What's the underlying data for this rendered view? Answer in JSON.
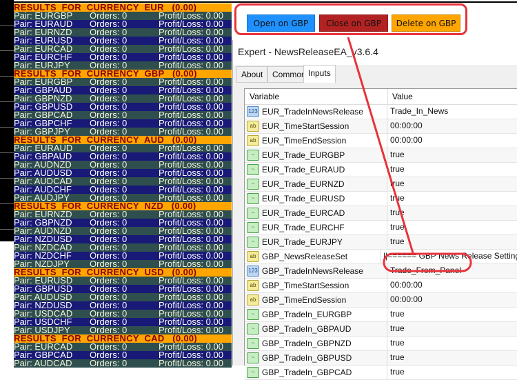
{
  "panel": {
    "sections": [
      {
        "header": "RESULTS  FOR  CURRENCY  EUR   (0.00)",
        "pairs": [
          "EURGBP",
          "EURAUD",
          "EURNZD",
          "EURUSD",
          "EURCAD",
          "EURCHF",
          "EURJPY"
        ]
      },
      {
        "header": "RESULTS  FOR  CURRENCY  GBP   (0.00)",
        "pairs": [
          "EURGBP",
          "GBPAUD",
          "GBPNZD",
          "GBPUSD",
          "GBPCAD",
          "GBPCHF",
          "GBPJPY"
        ]
      },
      {
        "header": "RESULTS  FOR  CURRENCY  AUD   (0.00)",
        "pairs": [
          "EURAUD",
          "GBPAUD",
          "AUDNZD",
          "AUDUSD",
          "AUDCAD",
          "AUDCHF",
          "AUDJPY"
        ]
      },
      {
        "header": "RESULTS  FOR  CURRENCY  NZD   (0.00)",
        "pairs": [
          "EURNZD",
          "GBPNZD",
          "AUDNZD",
          "NZDUSD",
          "NZDCAD",
          "NZDCHF",
          "NZDJPY"
        ]
      },
      {
        "header": "RESULTS  FOR  CURRENCY  USD   (0.00)",
        "pairs": [
          "EURUSD",
          "GBPUSD",
          "AUDUSD",
          "NZDUSD",
          "USDCAD",
          "USDCHF",
          "USDJPY"
        ]
      },
      {
        "header": "RESULTS  FOR  CURRENCY  CAD   (0.00)",
        "pairs": [
          "EURCAD",
          "GBPCAD",
          "AUDCAD"
        ]
      }
    ],
    "pair_prefix": "Pair: ",
    "orders_text": "Orders: 0",
    "pl_text": "Profit/Loss: 0.00"
  },
  "buttons": [
    {
      "label": "Open on GBP",
      "color": "#1e90ff"
    },
    {
      "label": "Close on GBP",
      "color": "#b22222"
    },
    {
      "label": "Delete on GBP",
      "color": "#ffa500"
    }
  ],
  "dialog": {
    "title": "Expert - NewsReleaseEA_v3.6.4",
    "tabs": [
      "About",
      "Common",
      "Inputs"
    ],
    "active_tab": "Inputs",
    "columns": [
      "Variable",
      "Value"
    ],
    "rows": [
      {
        "type": "enum",
        "name": "EUR_TradeInNewsRelease",
        "value": "Trade_In_News"
      },
      {
        "type": "str",
        "name": "EUR_TimeStartSession",
        "value": "00:00:00"
      },
      {
        "type": "str",
        "name": "EUR_TimeEndSession",
        "value": "00:00:00"
      },
      {
        "type": "bool",
        "name": "EUR_Trade_EURGBP",
        "value": "true"
      },
      {
        "type": "bool",
        "name": "EUR_Trade_EURAUD",
        "value": "true"
      },
      {
        "type": "bool",
        "name": "EUR_Trade_EURNZD",
        "value": "true"
      },
      {
        "type": "bool",
        "name": "EUR_Trade_EURUSD",
        "value": "true"
      },
      {
        "type": "bool",
        "name": "EUR_Trade_EURCAD",
        "value": "true"
      },
      {
        "type": "bool",
        "name": "EUR_Trade_EURCHF",
        "value": "true"
      },
      {
        "type": "bool",
        "name": "EUR_Trade_EURJPY",
        "value": "true"
      },
      {
        "type": "str",
        "name": "GBP_NewsReleaseSet",
        "value": "||====== GBP News Release Settings"
      },
      {
        "type": "enum",
        "name": "GBP_TradeInNewsRelease",
        "value": "Trade_From_Panel"
      },
      {
        "type": "str",
        "name": "GBP_TimeStartSession",
        "value": "00:00:00"
      },
      {
        "type": "str",
        "name": "GBP_TimeEndSession",
        "value": "00:00:00"
      },
      {
        "type": "bool",
        "name": "GBP_TradeIn_EURGBP",
        "value": "true"
      },
      {
        "type": "bool",
        "name": "GBP_TradeIn_GBPAUD",
        "value": "true"
      },
      {
        "type": "bool",
        "name": "GBP_TradeIn_GBPNZD",
        "value": "true"
      },
      {
        "type": "bool",
        "name": "GBP_TradeIn_GBPUSD",
        "value": "true"
      },
      {
        "type": "bool",
        "name": "GBP_TradeIn_GBPCAD",
        "value": "true"
      }
    ]
  },
  "icons": {
    "enum": "123",
    "str": "ab",
    "bool": "~"
  },
  "annotation_color": "#e8323a"
}
